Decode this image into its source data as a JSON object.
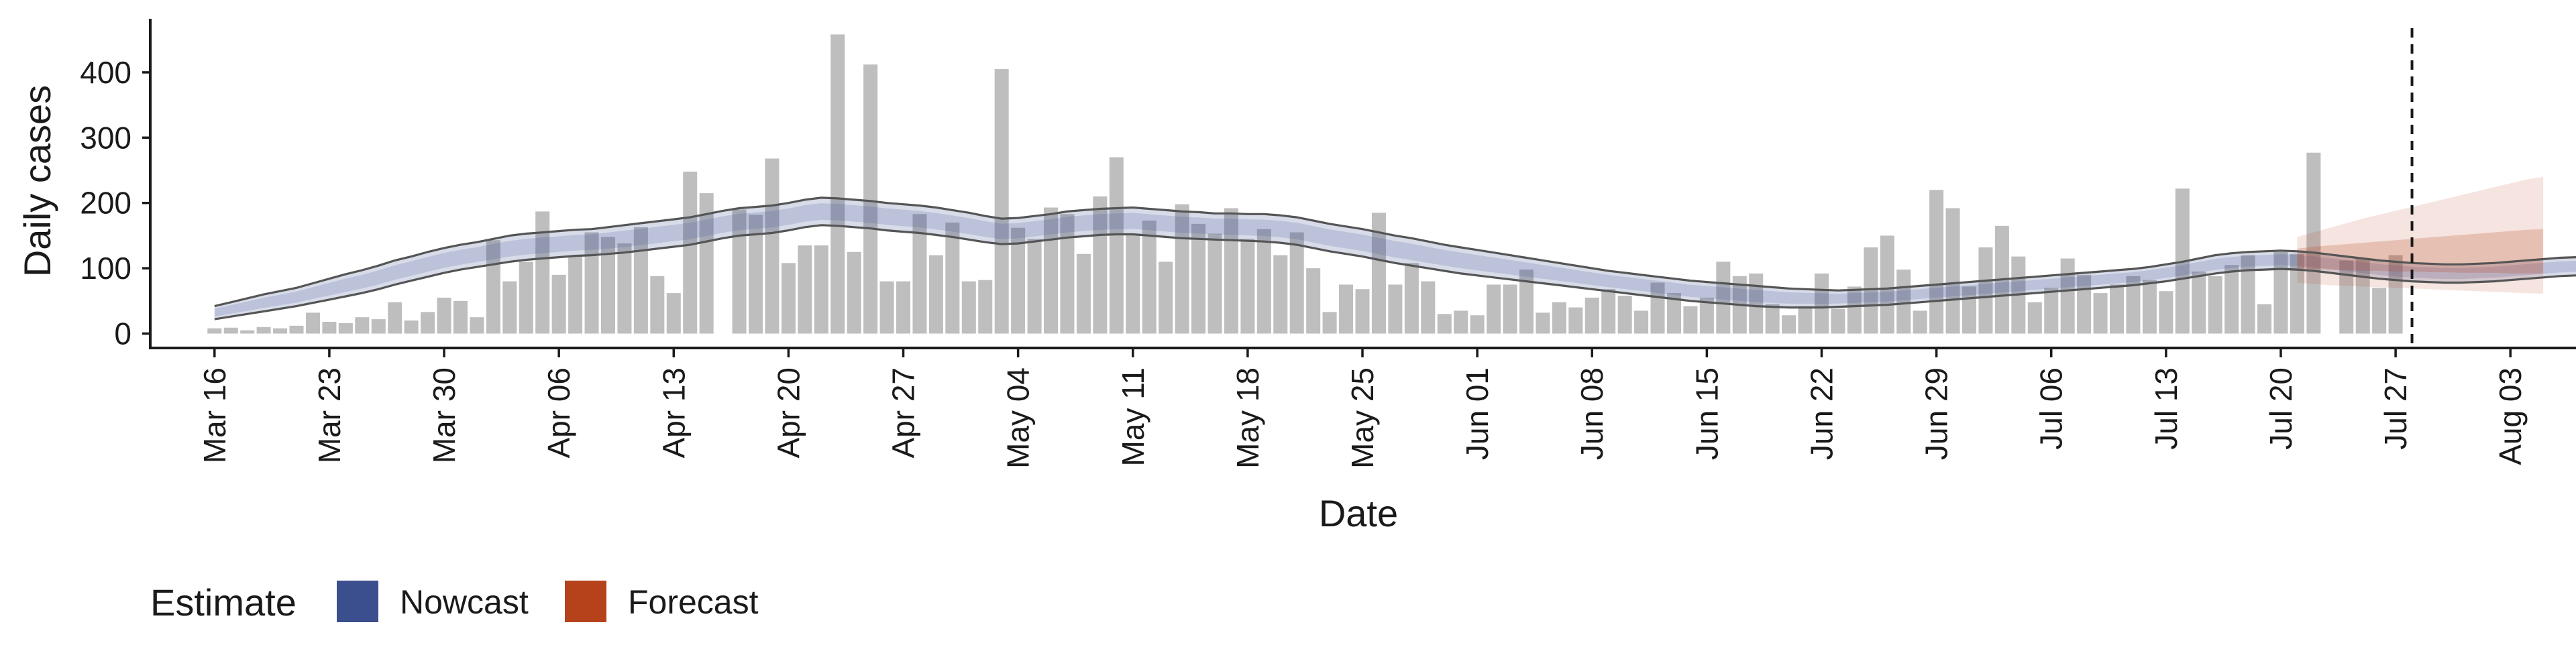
{
  "chart_data": {
    "type": "bar",
    "title": "",
    "xlabel": "Date",
    "ylabel": "Daily cases",
    "ylim": [
      -20,
      480
    ],
    "yticks": [
      0,
      100,
      200,
      300,
      400
    ],
    "x_range": [
      "2020-03-12",
      "2020-08-07"
    ],
    "x_ticks": [
      {
        "date": "2020-03-16",
        "label": "Mar 16"
      },
      {
        "date": "2020-03-23",
        "label": "Mar 23"
      },
      {
        "date": "2020-03-30",
        "label": "Mar 30"
      },
      {
        "date": "2020-04-06",
        "label": "Apr 06"
      },
      {
        "date": "2020-04-13",
        "label": "Apr 13"
      },
      {
        "date": "2020-04-20",
        "label": "Apr 20"
      },
      {
        "date": "2020-04-27",
        "label": "Apr 27"
      },
      {
        "date": "2020-05-04",
        "label": "May 04"
      },
      {
        "date": "2020-05-11",
        "label": "May 11"
      },
      {
        "date": "2020-05-18",
        "label": "May 18"
      },
      {
        "date": "2020-05-25",
        "label": "May 25"
      },
      {
        "date": "2020-06-01",
        "label": "Jun 01"
      },
      {
        "date": "2020-06-08",
        "label": "Jun 08"
      },
      {
        "date": "2020-06-15",
        "label": "Jun 15"
      },
      {
        "date": "2020-06-22",
        "label": "Jun 22"
      },
      {
        "date": "2020-06-29",
        "label": "Jun 29"
      },
      {
        "date": "2020-07-06",
        "label": "Jul 06"
      },
      {
        "date": "2020-07-13",
        "label": "Jul 13"
      },
      {
        "date": "2020-07-20",
        "label": "Jul 20"
      },
      {
        "date": "2020-07-27",
        "label": "Jul 27"
      },
      {
        "date": "2020-08-03",
        "label": "Aug 03"
      }
    ],
    "bars": {
      "start_date": "2020-03-16",
      "values": [
        8,
        9,
        5,
        10,
        8,
        12,
        32,
        18,
        16,
        25,
        22,
        48,
        20,
        33,
        55,
        50,
        25,
        143,
        80,
        110,
        187,
        90,
        118,
        155,
        148,
        138,
        163,
        88,
        62,
        248,
        215,
        0,
        190,
        182,
        268,
        108,
        135,
        135,
        458,
        125,
        412,
        80,
        80,
        183,
        120,
        170,
        80,
        82,
        405,
        162,
        145,
        193,
        183,
        122,
        210,
        270,
        152,
        173,
        110,
        198,
        168,
        153,
        192,
        145,
        160,
        120,
        155,
        100,
        33,
        75,
        68,
        185,
        75,
        108,
        80,
        30,
        35,
        28,
        75,
        75,
        98,
        32,
        48,
        40,
        55,
        68,
        58,
        35,
        78,
        62,
        42,
        55,
        110,
        88,
        92,
        45,
        28,
        42,
        92,
        38,
        72,
        132,
        150,
        98,
        35,
        220,
        192,
        72,
        132,
        165,
        118,
        48,
        70,
        115,
        90,
        62,
        75,
        88,
        82,
        65,
        222,
        95,
        88,
        105,
        120,
        45,
        125,
        122,
        277,
        0,
        112,
        115,
        70,
        120
      ]
    },
    "series": [
      {
        "name": "Nowcast",
        "color": "#3B4F8F",
        "start_date": "2020-03-16",
        "upper": [
          42,
          48,
          54,
          60,
          65,
          70,
          77,
          84,
          91,
          97,
          104,
          112,
          118,
          125,
          131,
          136,
          140,
          145,
          150,
          153,
          155,
          157,
          159,
          160,
          163,
          166,
          169,
          172,
          175,
          178,
          183,
          188,
          192,
          194,
          196,
          200,
          205,
          208,
          207,
          205,
          203,
          200,
          198,
          196,
          193,
          189,
          185,
          180,
          176,
          177,
          180,
          183,
          187,
          189,
          191,
          192,
          193,
          191,
          189,
          187,
          186,
          184,
          184,
          183,
          183,
          181,
          178,
          173,
          168,
          164,
          160,
          155,
          150,
          146,
          141,
          136,
          132,
          128,
          124,
          120,
          116,
          112,
          108,
          104,
          100,
          96,
          93,
          90,
          87,
          84,
          81,
          79,
          77,
          75,
          73,
          71,
          69,
          68,
          67,
          66,
          67,
          68,
          69,
          71,
          73,
          75,
          77,
          79,
          81,
          83,
          85,
          87,
          89,
          91,
          93,
          95,
          97,
          99,
          102,
          106,
          110,
          115,
          120,
          123,
          125,
          126,
          127,
          126,
          124,
          121,
          118,
          115,
          112,
          110,
          108,
          107,
          106,
          106,
          107,
          108,
          110,
          112,
          114,
          116,
          117,
          118,
          119,
          120,
          121,
          122,
          124,
          126,
          127,
          128,
          129,
          130,
          131,
          132,
          134,
          136,
          138
        ],
        "lower": [
          22,
          26,
          30,
          34,
          38,
          42,
          47,
          52,
          57,
          62,
          68,
          75,
          81,
          87,
          93,
          98,
          102,
          106,
          110,
          113,
          115,
          117,
          119,
          120,
          122,
          124,
          127,
          130,
          133,
          136,
          141,
          146,
          150,
          152,
          154,
          158,
          163,
          166,
          165,
          163,
          161,
          158,
          156,
          154,
          151,
          148,
          144,
          140,
          137,
          138,
          141,
          144,
          147,
          149,
          151,
          152,
          152,
          150,
          148,
          146,
          145,
          144,
          143,
          142,
          141,
          139,
          136,
          131,
          126,
          122,
          118,
          113,
          108,
          104,
          100,
          96,
          92,
          89,
          86,
          83,
          80,
          77,
          74,
          71,
          68,
          65,
          62,
          59,
          56,
          53,
          50,
          48,
          46,
          44,
          42,
          41,
          40,
          40,
          40,
          41,
          42,
          43,
          44,
          46,
          48,
          50,
          52,
          54,
          56,
          58,
          60,
          62,
          64,
          66,
          68,
          70,
          72,
          74,
          77,
          80,
          84,
          88,
          92,
          95,
          97,
          98,
          99,
          98,
          96,
          93,
          90,
          87,
          84,
          82,
          80,
          79,
          78,
          78,
          79,
          80,
          82,
          84,
          86,
          88,
          89,
          90,
          91,
          92,
          93,
          94,
          96,
          98,
          99,
          100,
          101,
          102,
          103,
          104,
          106,
          108,
          110
        ]
      },
      {
        "name": "Forecast",
        "color": "#B5421A",
        "start_date": "2020-07-21",
        "upper90": [
          148,
          155,
          162,
          169,
          176,
          182,
          188,
          194,
          200,
          206,
          212,
          218,
          224,
          230,
          236,
          240
        ],
        "lower90": [
          78,
          76,
          74,
          73,
          72,
          71,
          70,
          69,
          68,
          67,
          66,
          65,
          64,
          63,
          62,
          61
        ],
        "upper50": [
          130,
          133,
          135,
          137,
          139,
          141,
          143,
          145,
          147,
          149,
          151,
          153,
          155,
          157,
          159,
          160
        ],
        "lower50": [
          100,
          99,
          98,
          97,
          96,
          96,
          95,
          95,
          94,
          94,
          93,
          93,
          93,
          92,
          92,
          92
        ]
      }
    ],
    "reference_line": {
      "date": "2020-07-28",
      "style": "dashed"
    },
    "legend": {
      "title": "Estimate",
      "position": "bottom-left",
      "entries": [
        {
          "label": "Nowcast",
          "color": "#3B4F8F"
        },
        {
          "label": "Forecast",
          "color": "#B5421A"
        }
      ]
    },
    "grid": false
  }
}
